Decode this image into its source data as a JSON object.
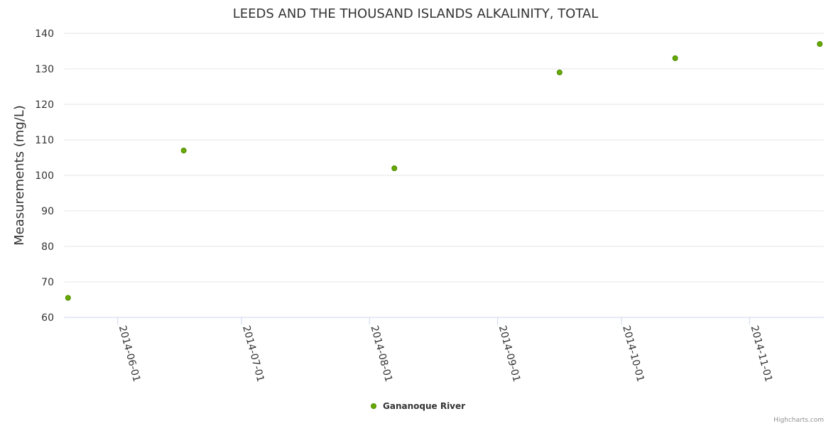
{
  "chart_data": {
    "type": "scatter",
    "title": "LEEDS AND THE THOUSAND ISLANDS ALKALINITY, TOTAL",
    "xlabel": "",
    "ylabel": "Measurements (mg/L)",
    "ylim": [
      60,
      140
    ],
    "yticks": [
      60,
      70,
      80,
      90,
      100,
      110,
      120,
      130,
      140
    ],
    "xlim": [
      "2014-05-19",
      "2014-11-19"
    ],
    "xticks": [
      "2014-06-01",
      "2014-07-01",
      "2014-08-01",
      "2014-09-01",
      "2014-10-01",
      "2014-11-01"
    ],
    "grid": true,
    "legend_position": "bottom-center",
    "series": [
      {
        "name": "Gananoque River",
        "color": "#66aa00",
        "points": [
          {
            "x": "2014-05-20",
            "y": 65.5
          },
          {
            "x": "2014-06-17",
            "y": 107
          },
          {
            "x": "2014-08-07",
            "y": 102
          },
          {
            "x": "2014-09-16",
            "y": 129
          },
          {
            "x": "2014-10-14",
            "y": 133
          },
          {
            "x": "2014-11-18",
            "y": 137
          }
        ]
      }
    ]
  },
  "credits": "Highcharts.com"
}
